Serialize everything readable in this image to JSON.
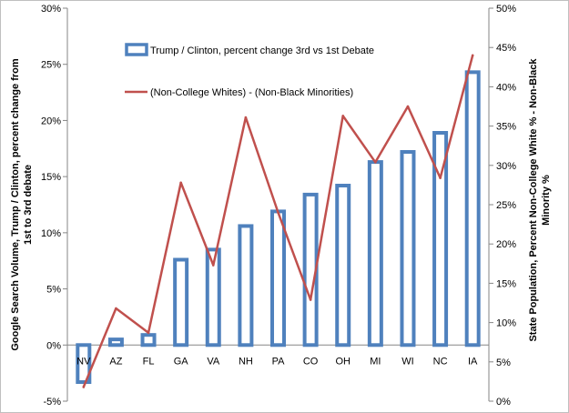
{
  "chart_data": {
    "type": "bar",
    "categories": [
      "NV",
      "AZ",
      "FL",
      "GA",
      "VA",
      "NH",
      "PA",
      "CO",
      "OH",
      "MI",
      "WI",
      "NC",
      "IA"
    ],
    "series": [
      {
        "name": "Trump / Clinton, percent change 3rd vs 1st Debate",
        "type": "bar",
        "axis": "left",
        "values": [
          -3.3,
          0.5,
          0.9,
          7.6,
          8.5,
          10.6,
          11.9,
          13.4,
          14.2,
          16.3,
          17.2,
          18.9,
          24.3
        ],
        "color": "#4f81bd"
      },
      {
        "name": "(Non-College Whites) - (Non-Black Minorities)",
        "type": "line",
        "axis": "right",
        "values": [
          1.8,
          11.8,
          8.7,
          27.8,
          17.3,
          36.1,
          24.0,
          12.9,
          36.3,
          30.4,
          37.5,
          28.4,
          44.0
        ],
        "color": "#c0504d"
      }
    ],
    "left_axis": {
      "title": "Google Search Volume, Trump / Clinton, percent change from 1st to 3rd debate",
      "ylim": [
        -5,
        30
      ],
      "ticks": [
        "-5%",
        "0%",
        "5%",
        "10%",
        "15%",
        "20%",
        "25%",
        "30%"
      ]
    },
    "right_axis": {
      "title": "State Population, Percent Non-College White % - Non-Black Minority %",
      "ylim": [
        0,
        50
      ],
      "ticks": [
        "0%",
        "5%",
        "10%",
        "15%",
        "20%",
        "25%",
        "30%",
        "35%",
        "40%",
        "45%",
        "50%"
      ]
    },
    "grid": false,
    "legend_position": "top-left"
  }
}
